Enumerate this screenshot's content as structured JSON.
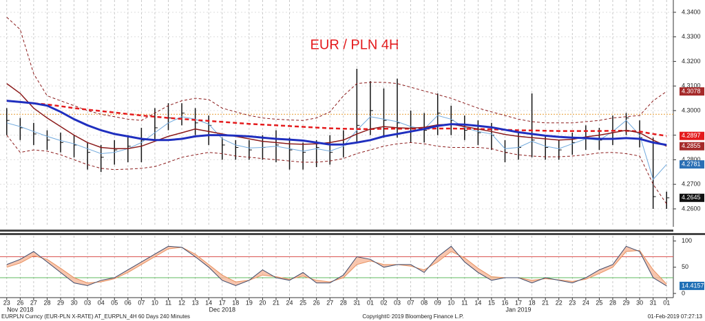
{
  "chart_data": [
    {
      "type": "ohlc",
      "title": "EUR / PLN 4H",
      "categories": [
        "23",
        "26",
        "27",
        "28",
        "29",
        "30",
        "03",
        "04",
        "05",
        "06",
        "07",
        "10",
        "11",
        "12",
        "13",
        "14",
        "17",
        "18",
        "19",
        "20",
        "21",
        "24",
        "25",
        "26",
        "27",
        "28",
        "31",
        "01",
        "02",
        "03",
        "07",
        "08",
        "09",
        "10",
        "11",
        "14",
        "15",
        "16",
        "17",
        "18",
        "21",
        "22",
        "23",
        "24",
        "25",
        "28",
        "29",
        "30",
        "31",
        "01"
      ],
      "months": [
        "Nov 2018",
        "Dec 2018",
        "Jan 2019"
      ],
      "high": [
        4.301,
        4.297,
        4.295,
        4.292,
        4.291,
        4.29,
        4.287,
        4.286,
        4.288,
        4.29,
        4.293,
        4.301,
        4.303,
        4.303,
        4.301,
        4.298,
        4.289,
        4.288,
        4.288,
        4.29,
        4.292,
        4.289,
        4.287,
        4.288,
        4.29,
        4.292,
        4.317,
        4.312,
        4.309,
        4.313,
        4.3,
        4.299,
        4.307,
        4.302,
        4.298,
        4.296,
        4.295,
        4.288,
        4.291,
        4.307,
        4.29,
        4.288,
        4.291,
        4.294,
        4.293,
        4.298,
        4.299,
        4.296,
        4.289,
        4.267
      ],
      "low": [
        4.29,
        4.288,
        4.286,
        4.284,
        4.283,
        4.281,
        4.276,
        4.275,
        4.278,
        4.279,
        4.279,
        4.288,
        4.292,
        4.294,
        4.29,
        4.286,
        4.28,
        4.28,
        4.28,
        4.28,
        4.279,
        4.276,
        4.276,
        4.277,
        4.278,
        4.281,
        4.287,
        4.29,
        4.289,
        4.289,
        4.287,
        4.287,
        4.29,
        4.29,
        4.288,
        4.286,
        4.284,
        4.279,
        4.28,
        4.281,
        4.28,
        4.28,
        4.282,
        4.284,
        4.284,
        4.286,
        4.29,
        4.285,
        4.26,
        4.26
      ],
      "close": [
        4.296,
        4.293,
        4.2905,
        4.288,
        4.287,
        4.286,
        4.283,
        4.281,
        4.284,
        4.2855,
        4.288,
        4.293,
        4.297,
        4.299,
        4.295,
        4.294,
        4.286,
        4.285,
        4.284,
        4.285,
        4.286,
        4.284,
        4.283,
        4.285,
        4.283,
        4.286,
        4.294,
        4.3,
        4.296,
        4.295,
        4.293,
        4.292,
        4.299,
        4.296,
        4.292,
        4.291,
        4.29,
        4.283,
        4.285,
        4.288,
        4.285,
        4.284,
        4.287,
        4.289,
        4.288,
        4.292,
        4.297,
        4.289,
        4.265,
        4.2645
      ],
      "bar_color": "#111111",
      "overlays": [
        {
          "color": "#8b1a1a",
          "style": "dashed",
          "values": [
            4.338,
            4.333,
            4.315,
            4.306,
            4.304,
            4.302,
            4.3,
            4.2985,
            4.2975,
            4.2965,
            4.296,
            4.299,
            4.302,
            4.304,
            4.305,
            4.3045,
            4.301,
            4.2995,
            4.298,
            4.297,
            4.2965,
            4.2962,
            4.296,
            4.297,
            4.2995,
            4.306,
            4.311,
            4.3115,
            4.3115,
            4.311,
            4.3095,
            4.308,
            4.3065,
            4.305,
            4.303,
            4.301,
            4.2995,
            4.298,
            4.2965,
            4.2955,
            4.295,
            4.295,
            4.295,
            4.2955,
            4.296,
            4.297,
            4.2975,
            4.298,
            4.304,
            4.3078
          ]
        },
        {
          "color": "#8b1a1a",
          "style": "dashed",
          "values": [
            4.29,
            4.283,
            4.284,
            4.2835,
            4.282,
            4.28,
            4.278,
            4.2765,
            4.276,
            4.2762,
            4.2765,
            4.2772,
            4.279,
            4.281,
            4.282,
            4.283,
            4.2825,
            4.2815,
            4.281,
            4.2805,
            4.28,
            4.2795,
            4.279,
            4.279,
            4.2795,
            4.2805,
            4.2825,
            4.284,
            4.2855,
            4.2865,
            4.287,
            4.2865,
            4.2855,
            4.285,
            4.285,
            4.285,
            4.2845,
            4.283,
            4.282,
            4.2815,
            4.2812,
            4.2812,
            4.2815,
            4.282,
            4.2828,
            4.283,
            4.2825,
            4.2815,
            4.27,
            4.262
          ]
        },
        {
          "color": "#6fa8dc",
          "style": "thin",
          "values": [
            4.295,
            4.2935,
            4.2915,
            4.2895,
            4.2878,
            4.2865,
            4.2845,
            4.2825,
            4.283,
            4.2845,
            4.287,
            4.291,
            4.295,
            4.2975,
            4.2965,
            4.2945,
            4.2885,
            4.286,
            4.2848,
            4.285,
            4.2855,
            4.2845,
            4.2835,
            4.2845,
            4.2835,
            4.2855,
            4.292,
            4.2975,
            4.2965,
            4.2955,
            4.2935,
            4.2925,
            4.298,
            4.2965,
            4.293,
            4.2915,
            4.2905,
            4.2845,
            4.285,
            4.2875,
            4.2855,
            4.2845,
            4.2865,
            4.2885,
            4.288,
            4.2915,
            4.296,
            4.29,
            4.272,
            4.2781
          ]
        },
        {
          "color": "#e41a1c",
          "style": "thick-dashed",
          "values": [
            4.304,
            4.3035,
            4.303,
            4.3025,
            4.3018,
            4.301,
            4.3004,
            4.2998,
            4.2992,
            4.2986,
            4.298,
            4.2975,
            4.297,
            4.2966,
            4.2962,
            4.2958,
            4.2954,
            4.295,
            4.2946,
            4.2943,
            4.294,
            4.2937,
            4.2934,
            4.2931,
            4.2928,
            4.2926,
            4.2925,
            4.2925,
            4.2926,
            4.2926,
            4.2926,
            4.2926,
            4.2927,
            4.2927,
            4.2926,
            4.2925,
            4.2924,
            4.2922,
            4.292,
            4.2919,
            4.2918,
            4.2917,
            4.2917,
            4.2917,
            4.2917,
            4.2918,
            4.2918,
            4.2915,
            4.2905,
            4.2897
          ]
        },
        {
          "color": "#8b1a1a",
          "style": "solid",
          "values": [
            4.311,
            4.307,
            4.301,
            4.297,
            4.2935,
            4.29,
            4.287,
            4.285,
            4.2845,
            4.2845,
            4.2855,
            4.2875,
            4.2895,
            4.291,
            4.2925,
            4.2915,
            4.2905,
            4.2895,
            4.2885,
            4.2875,
            4.287,
            4.2865,
            4.2863,
            4.2865,
            4.287,
            4.288,
            4.2905,
            4.2925,
            4.2935,
            4.293,
            4.2928,
            4.2932,
            4.2942,
            4.2945,
            4.2935,
            4.2925,
            4.2915,
            4.2903,
            4.2895,
            4.289,
            4.2885,
            4.288,
            4.2883,
            4.2893,
            4.29,
            4.291,
            4.292,
            4.291,
            4.288,
            4.2855
          ]
        },
        {
          "color": "#1f2fbf",
          "style": "thick",
          "values": [
            4.304,
            4.3035,
            4.303,
            4.302,
            4.2995,
            4.2965,
            4.294,
            4.292,
            4.2905,
            4.2895,
            4.2885,
            4.288,
            4.288,
            4.2885,
            4.2895,
            4.29,
            4.29,
            4.2898,
            4.2895,
            4.289,
            4.2885,
            4.2882,
            4.2878,
            4.287,
            4.2862,
            4.2862,
            4.287,
            4.288,
            4.2895,
            4.2905,
            4.2915,
            4.2925,
            4.2938,
            4.2945,
            4.2943,
            4.2938,
            4.2932,
            4.2922,
            4.2912,
            4.2905,
            4.2898,
            4.2893,
            4.289,
            4.2888,
            4.2885,
            4.2885,
            4.2888,
            4.2885,
            4.287,
            4.286
          ]
        }
      ],
      "hline": {
        "value": 4.2985,
        "color": "#e69a2e"
      },
      "ylim": [
        4.2527,
        4.345
      ],
      "yticks": [
        {
          "value": 4.26,
          "label": "4.2600"
        },
        {
          "value": 4.27,
          "label": "4.2700"
        },
        {
          "value": 4.28,
          "label": "4.2800"
        },
        {
          "value": 4.29,
          "label": "4.2900"
        },
        {
          "value": 4.3,
          "label": "4.3000"
        },
        {
          "value": 4.31,
          "label": "4.3100"
        },
        {
          "value": 4.32,
          "label": "4.3200"
        },
        {
          "value": 4.33,
          "label": "4.3300"
        },
        {
          "value": 4.34,
          "label": "4.3400"
        }
      ],
      "grid": true,
      "price_tags": [
        {
          "value": 4.3078,
          "color": "#a52a2a"
        },
        {
          "value": 4.2897,
          "color": "#e41a1c"
        },
        {
          "value": 4.2855,
          "color": "#a52a2a"
        },
        {
          "value": 4.2781,
          "color": "#2a6fb5"
        },
        {
          "value": 4.2645,
          "color": "#111111"
        }
      ]
    },
    {
      "type": "line",
      "series": [
        {
          "color": "#e8915f",
          "values": [
            50,
            58,
            72,
            65,
            48,
            30,
            20,
            22,
            28,
            40,
            55,
            70,
            85,
            88,
            75,
            55,
            35,
            22,
            25,
            35,
            32,
            27,
            33,
            25,
            22,
            30,
            55,
            62,
            55,
            55,
            52,
            45,
            60,
            80,
            68,
            48,
            32,
            30,
            30,
            25,
            28,
            26,
            23,
            27,
            38,
            50,
            80,
            82,
            45,
            18
          ]
        },
        {
          "color": "#3d4a6b",
          "values": [
            55,
            65,
            80,
            60,
            40,
            20,
            15,
            25,
            30,
            45,
            60,
            75,
            90,
            88,
            70,
            50,
            25,
            15,
            25,
            45,
            30,
            25,
            40,
            20,
            20,
            35,
            70,
            65,
            50,
            55,
            55,
            40,
            70,
            90,
            60,
            40,
            25,
            30,
            30,
            20,
            30,
            25,
            20,
            30,
            45,
            55,
            90,
            80,
            30,
            14.4157
          ]
        }
      ],
      "fill_between": "#f6b89a",
      "levels": [
        {
          "value": 70,
          "color": "#d9534f"
        },
        {
          "value": 30,
          "color": "#5cb85c"
        }
      ],
      "ylim": [
        -8,
        110
      ],
      "yticks": [
        0,
        50,
        100
      ],
      "price_tags": [
        {
          "value": 14.4157,
          "color": "#1f6fb5"
        }
      ]
    }
  ],
  "footer": {
    "left": "EURPLN Curncy (EUR-PLN X-RATE) AT_EURPLN_4H 60 Days 240 Minutes",
    "center": "Copyright© 2019 Bloomberg Finance L.P.",
    "right": "01-Feb-2019 07:27:13"
  }
}
